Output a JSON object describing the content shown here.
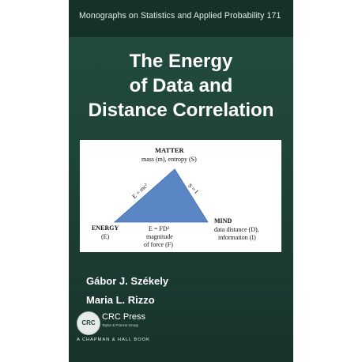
{
  "cover": {
    "series": "Monographs on Statistics and Applied Probability 171",
    "title_lines": [
      "The Energy",
      "of Data and",
      "Distance Correlation"
    ],
    "diagram": {
      "matter_heading": "MATTER",
      "matter_detail": "mass (m), entropy (S)",
      "left_edge_label": "E = mc²",
      "right_edge_label": "S = I",
      "energy_heading": "ENERGY",
      "energy_detail": "(E)",
      "mind_heading": "MIND",
      "mind_detail_1": "data distance (D),",
      "mind_detail_2": "information (I)",
      "force_formula": "E = FD²",
      "force_detail_1": "magnitude",
      "force_detail_2": "of force (F)",
      "triangle_color": "#5b86c6"
    },
    "authors": [
      "Gábor J. Székely",
      "Maria L. Rizzo"
    ],
    "publisher": {
      "logo_text": "CRC",
      "name": "CRC Press",
      "subtitle": "Taylor & Francis Group",
      "imprint": "A CHAPMAN & HALL BOOK"
    },
    "colors": {
      "background": "#1f4538",
      "text": "#ffffff"
    }
  }
}
